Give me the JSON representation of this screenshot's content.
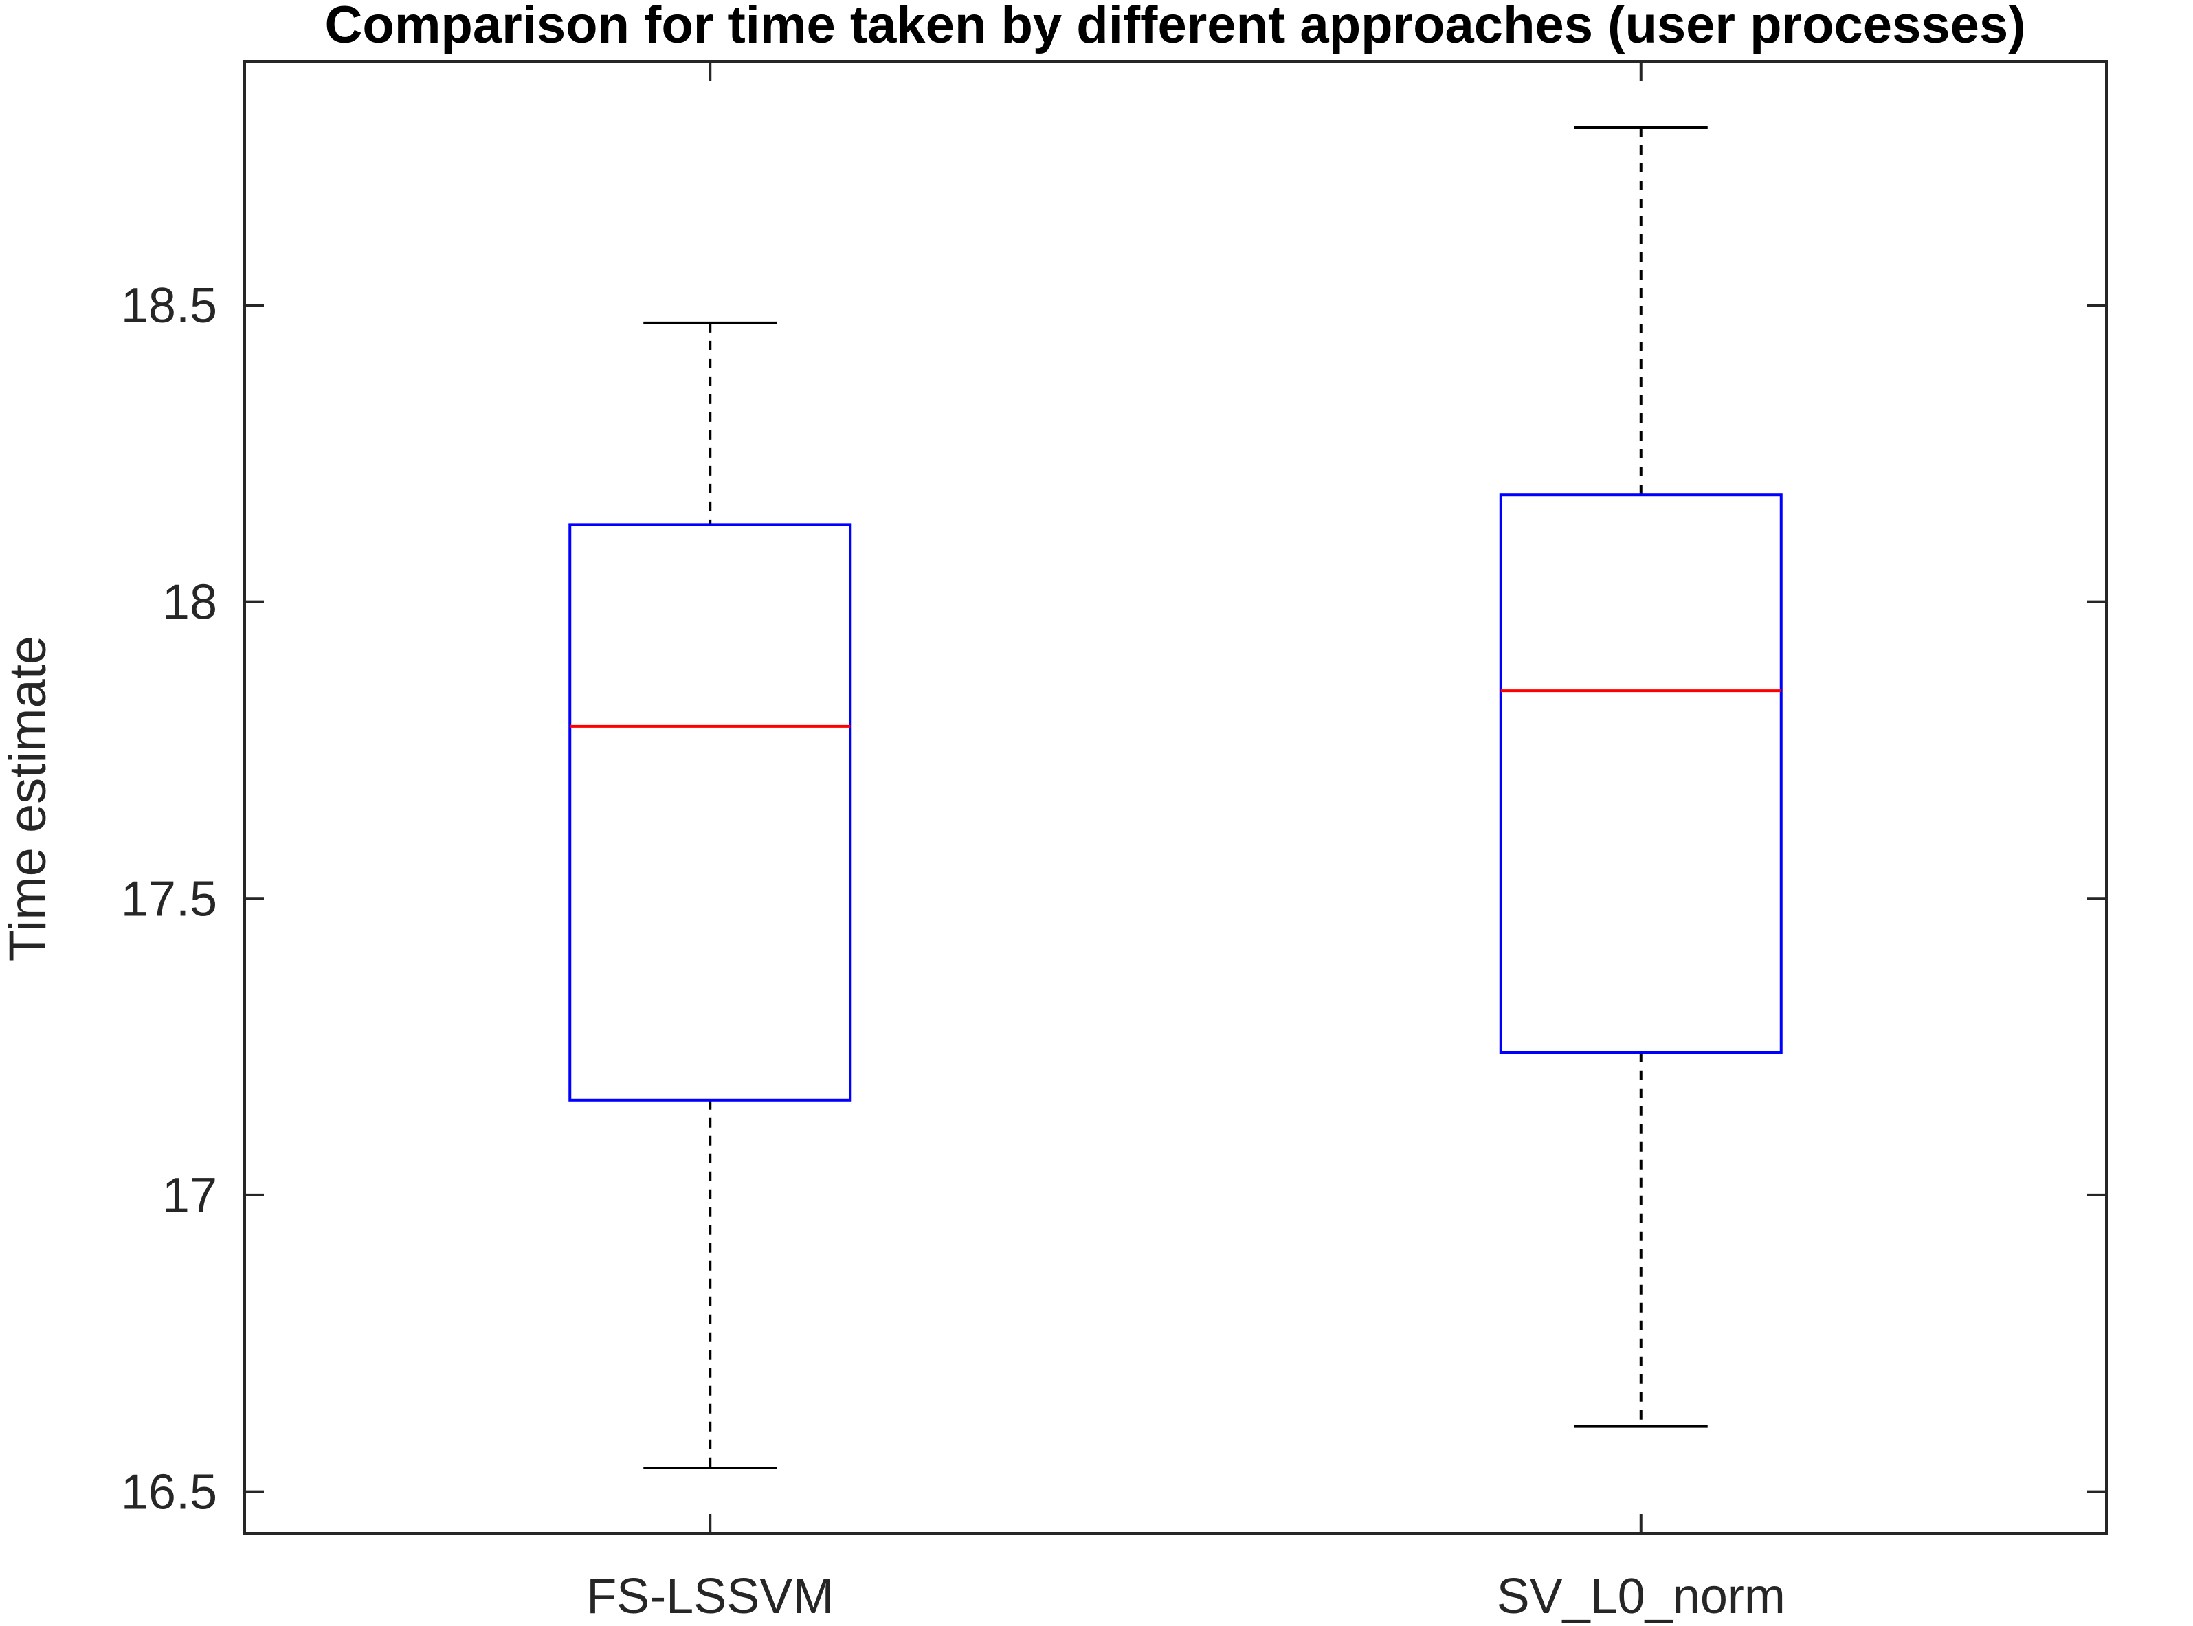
{
  "chart_data": {
    "type": "box",
    "title": "Comparison for time taken by different approaches (user processes)",
    "xlabel": "",
    "ylabel": "Time estimate",
    "ylim": [
      16.43,
      18.91
    ],
    "yticks": [
      16.5,
      17,
      17.5,
      18,
      18.5
    ],
    "ytick_labels": [
      "16.5",
      "17",
      "17.5",
      "18",
      "18.5"
    ],
    "grid": false,
    "categories": [
      "FS-LSSVM",
      "SV_L0_norm"
    ],
    "boxes": [
      {
        "name": "FS-LSSVM",
        "min": 16.54,
        "q1": 17.16,
        "median": 17.79,
        "q3": 18.13,
        "max": 18.47
      },
      {
        "name": "SV_L0_norm",
        "min": 16.61,
        "q1": 17.24,
        "median": 17.85,
        "q3": 18.18,
        "max": 18.8
      }
    ],
    "colors": {
      "box": "#0000ff",
      "median": "#ff0000",
      "whisker": "#000000",
      "axes": "#262626"
    }
  }
}
